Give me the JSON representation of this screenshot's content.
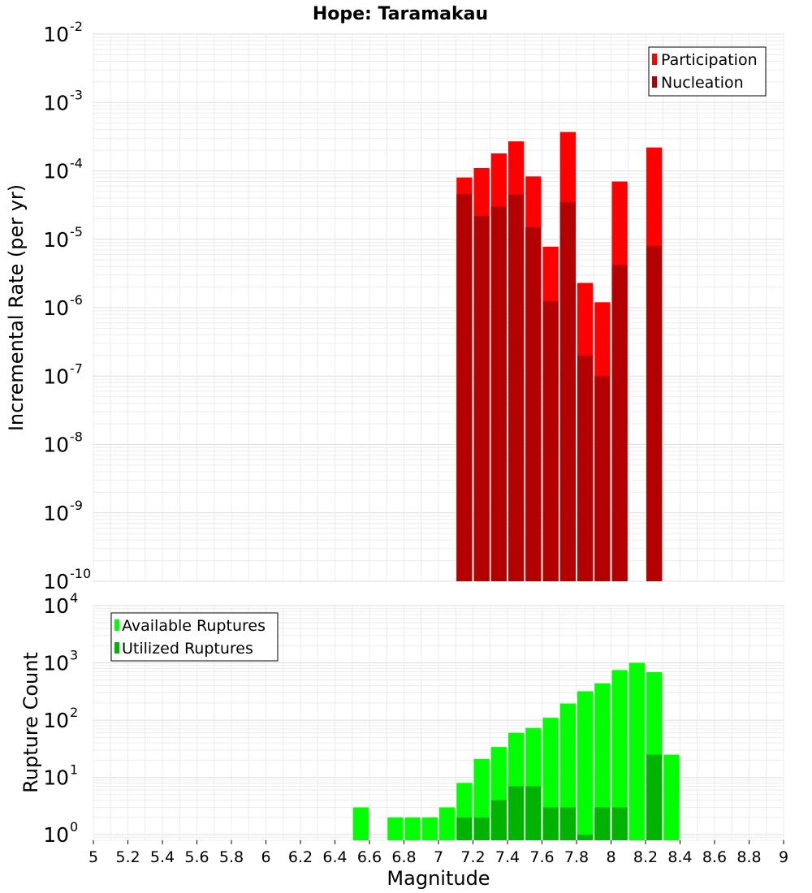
{
  "chart_data": [
    {
      "type": "bar",
      "title": "Hope: Taramakau",
      "xlabel": "",
      "ylabel": "Incremental Rate (per yr)",
      "yscale": "log",
      "ylim": [
        1e-10,
        0.01
      ],
      "xlim": [
        5,
        9
      ],
      "grid": true,
      "legend_position": "top-right",
      "y_tick_labels": [
        {
          "base": "10",
          "exp": "-2"
        },
        {
          "base": "10",
          "exp": "-3"
        },
        {
          "base": "10",
          "exp": "-4"
        },
        {
          "base": "10",
          "exp": "-5"
        },
        {
          "base": "10",
          "exp": "-6"
        },
        {
          "base": "10",
          "exp": "-7"
        },
        {
          "base": "10",
          "exp": "-8"
        },
        {
          "base": "10",
          "exp": "-9"
        },
        {
          "base": "10",
          "exp": "-10"
        }
      ],
      "bin_width": 0.1,
      "x": [
        7.15,
        7.25,
        7.35,
        7.45,
        7.55,
        7.65,
        7.75,
        7.85,
        7.95,
        8.05,
        8.25
      ],
      "series": [
        {
          "name": "Participation",
          "color": "#ff0000",
          "values": [
            8e-05,
            0.00011,
            0.00018,
            0.00027,
            8.3e-05,
            7.8e-06,
            0.00037,
            2.3e-06,
            1.2e-06,
            7e-05,
            0.00022
          ]
        },
        {
          "name": "Nucleation",
          "color": "#b30000",
          "values": [
            4.6e-05,
            2.2e-05,
            3e-05,
            4.5e-05,
            1.5e-05,
            1.25e-06,
            3.5e-05,
            2e-07,
            1e-07,
            4.2e-06,
            8e-06
          ]
        }
      ]
    },
    {
      "type": "bar",
      "title": "",
      "xlabel": "Magnitude",
      "ylabel": "Rupture Count",
      "yscale": "log",
      "ylim": [
        0.8,
        10000
      ],
      "xlim": [
        5,
        9
      ],
      "grid": true,
      "legend_position": "top-left",
      "y_tick_labels": [
        {
          "base": "10",
          "exp": "4"
        },
        {
          "base": "10",
          "exp": "3"
        },
        {
          "base": "10",
          "exp": "2"
        },
        {
          "base": "10",
          "exp": "1"
        },
        {
          "base": "10",
          "exp": "0"
        }
      ],
      "x_tick_labels": [
        "5",
        "5.2",
        "5.4",
        "5.6",
        "5.8",
        "6",
        "6.2",
        "6.4",
        "6.6",
        "6.8",
        "7",
        "7.2",
        "7.4",
        "7.6",
        "7.8",
        "8",
        "8.2",
        "8.4",
        "8.6",
        "8.8",
        "9"
      ],
      "bin_width": 0.1,
      "x": [
        6.55,
        6.75,
        6.85,
        6.95,
        7.05,
        7.15,
        7.25,
        7.35,
        7.45,
        7.55,
        7.65,
        7.75,
        7.85,
        7.95,
        8.05,
        8.15,
        8.25,
        8.35
      ],
      "series": [
        {
          "name": "Available Ruptures",
          "color": "#00ff00",
          "values": [
            3,
            2,
            2,
            2,
            3,
            8,
            21,
            34,
            60,
            73,
            110,
            195,
            320,
            440,
            750,
            1000,
            690,
            25
          ]
        },
        {
          "name": "Utilized Ruptures",
          "color": "#00b300",
          "values": [
            0,
            0,
            0,
            0,
            0,
            2,
            2,
            4,
            7,
            7,
            3,
            3,
            1,
            3,
            3,
            0,
            25,
            0
          ]
        }
      ]
    }
  ]
}
